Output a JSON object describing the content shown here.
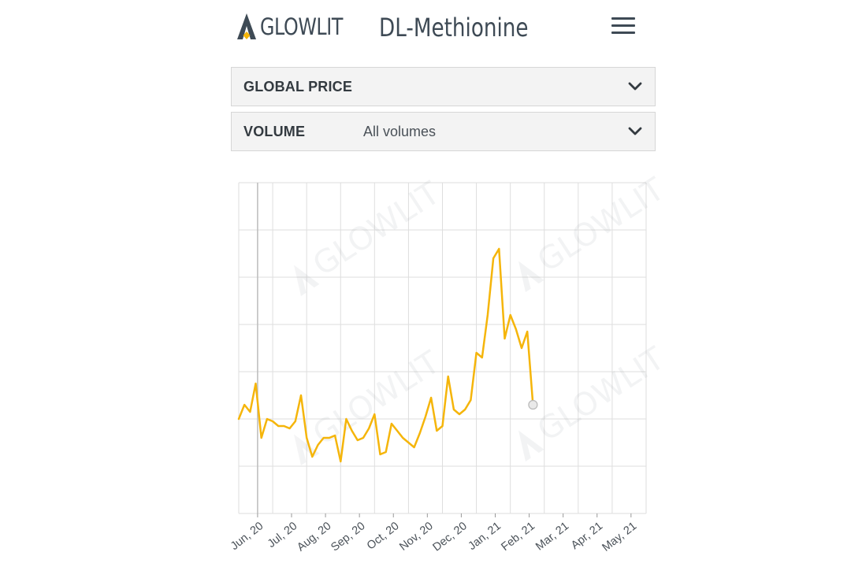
{
  "header": {
    "brand": "GLOWLIT",
    "title": "DL-Methionine",
    "menu_icon": "hamburger-menu-icon"
  },
  "filters": {
    "price": {
      "label": "GLOBAL PRICE",
      "value": ""
    },
    "volume": {
      "label": "VOLUME",
      "value": "All volumes"
    }
  },
  "colors": {
    "line": "#f5b50a",
    "grid": "#dedede",
    "text": "#333a40",
    "brand_accent": "#f5b50a"
  },
  "chart_data": {
    "type": "line",
    "title": "",
    "xlabel": "",
    "ylabel": "",
    "grid": true,
    "x_ticks": [
      "Jun, 20",
      "Jul, 20",
      "Aug, 20",
      "Sep, 20",
      "Oct, 20",
      "Nov, 20",
      "Dec, 20",
      "Jan, 21",
      "Feb, 21",
      "Mar, 21",
      "Apr, 21",
      "May, 21"
    ],
    "x_tick_positions": [
      3.33,
      9.33,
      15.33,
      21.33,
      27.33,
      33.33,
      39.33,
      45.33,
      51.33,
      57.33,
      63.33,
      69.33
    ],
    "xlim": [
      0,
      72
    ],
    "ylim": [
      0,
      7
    ],
    "series": [
      {
        "values": [
          2.0,
          2.3,
          2.15,
          2.75,
          1.6,
          2.0,
          1.95,
          1.85,
          1.85,
          1.8,
          1.95,
          2.5,
          1.6,
          1.2,
          1.45,
          1.6,
          1.6,
          1.65,
          1.1,
          2.0,
          1.75,
          1.55,
          1.6,
          1.8,
          2.1,
          1.25,
          1.3,
          1.9,
          1.75,
          1.6,
          1.5,
          1.4,
          1.7,
          2.05,
          2.45,
          1.75,
          1.85,
          2.9,
          2.2,
          2.1,
          2.2,
          2.4,
          3.4,
          3.3,
          4.2,
          5.4,
          5.6,
          3.7,
          4.2,
          3.9,
          3.5,
          3.85,
          2.3
        ],
        "last_point_marker": true
      }
    ]
  }
}
